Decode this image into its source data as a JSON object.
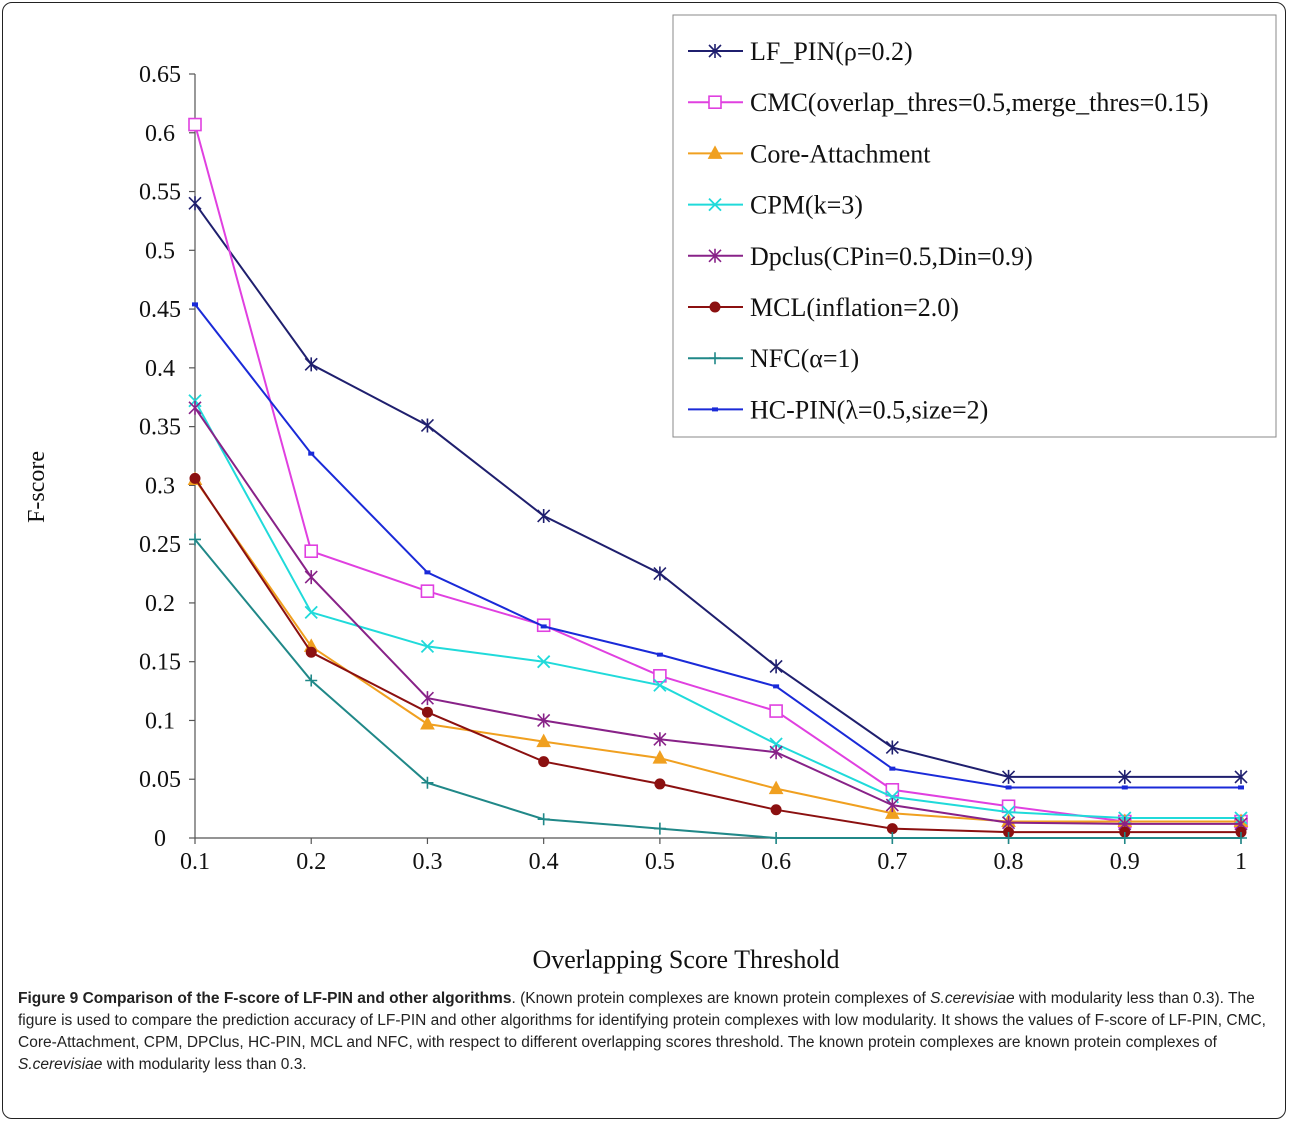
{
  "chart_data": {
    "type": "line",
    "xlabel": "Overlapping Score Threshold",
    "ylabel": "F-score",
    "x": [
      0.1,
      0.2,
      0.3,
      0.4,
      0.5,
      0.6,
      0.7,
      0.8,
      0.9,
      1
    ],
    "x_tick_labels": [
      "0.1",
      "0.2",
      "0.3",
      "0.4",
      "0.5",
      "0.6",
      "0.7",
      "0.8",
      "0.9",
      "1"
    ],
    "ylim": [
      0,
      0.65
    ],
    "y_ticks": [
      0,
      0.05,
      0.1,
      0.15,
      0.2,
      0.25,
      0.3,
      0.35,
      0.4,
      0.45,
      0.5,
      0.55,
      0.6,
      0.65
    ],
    "y_tick_labels": [
      "0",
      "0.05",
      "0.1",
      "0.15",
      "0.2",
      "0.25",
      "0.3",
      "0.35",
      "0.4",
      "0.45",
      "0.5",
      "0.55",
      "0.6",
      "0.65"
    ],
    "grid": false,
    "legend_position": "top-right",
    "series": [
      {
        "name": "LF_PIN(ρ=0.2)",
        "color": "#1f1f6e",
        "marker": "star",
        "values": [
          0.54,
          0.403,
          0.351,
          0.274,
          0.225,
          0.146,
          0.077,
          0.052,
          0.052,
          0.052
        ]
      },
      {
        "name": "CMC(overlap_thres=0.5,merge_thres=0.15)",
        "color": "#e040e0",
        "marker": "square",
        "values": [
          0.607,
          0.244,
          0.21,
          0.181,
          0.138,
          0.108,
          0.041,
          0.027,
          0.014,
          0.014
        ]
      },
      {
        "name": "Core-Attachment",
        "color": "#f0a020",
        "marker": "triangle",
        "values": [
          0.305,
          0.163,
          0.097,
          0.082,
          0.068,
          0.042,
          0.021,
          0.014,
          0.014,
          0.014
        ]
      },
      {
        "name": "CPM(k=3)",
        "color": "#20dada",
        "marker": "x",
        "values": [
          0.372,
          0.192,
          0.163,
          0.15,
          0.13,
          0.08,
          0.035,
          0.022,
          0.017,
          0.017
        ]
      },
      {
        "name": "Dpclus(CPin=0.5,Din=0.9)",
        "color": "#882288",
        "marker": "star",
        "values": [
          0.366,
          0.222,
          0.119,
          0.1,
          0.084,
          0.073,
          0.028,
          0.013,
          0.012,
          0.012
        ]
      },
      {
        "name": "MCL(inflation=2.0)",
        "color": "#8b1010",
        "marker": "circle",
        "values": [
          0.306,
          0.158,
          0.107,
          0.065,
          0.046,
          0.024,
          0.008,
          0.005,
          0.005,
          0.005
        ]
      },
      {
        "name": "NFC(α=1)",
        "color": "#208888",
        "marker": "plus",
        "values": [
          0.254,
          0.134,
          0.047,
          0.016,
          0.008,
          0,
          0,
          0,
          0,
          0
        ]
      },
      {
        "name": "HC-PIN(λ=0.5,size=2)",
        "color": "#1a2ad8",
        "marker": "dash",
        "values": [
          0.454,
          0.327,
          0.226,
          0.18,
          0.156,
          0.129,
          0.059,
          0.043,
          0.043,
          0.043
        ]
      }
    ]
  },
  "caption": {
    "label": "Figure 9 Comparison of the F-score of LF-PIN and other algorithms",
    "text_1": ". (Known protein complexes are known protein complexes of ",
    "species_1": "S.cerevisiae",
    "text_2": " with modularity less than 0.3). The figure is used to compare the prediction accuracy of LF-PIN and other algorithms for identifying protein complexes with low modularity. It shows the values of F-score of LF-PIN, CMC, Core-Attachment, CPM, DPClus, HC-PIN, MCL and NFC, with respect to different overlapping scores threshold. The known protein complexes are known protein complexes of ",
    "species_2": "S.cerevisiae",
    "text_3": " with modularity less than 0.3."
  }
}
